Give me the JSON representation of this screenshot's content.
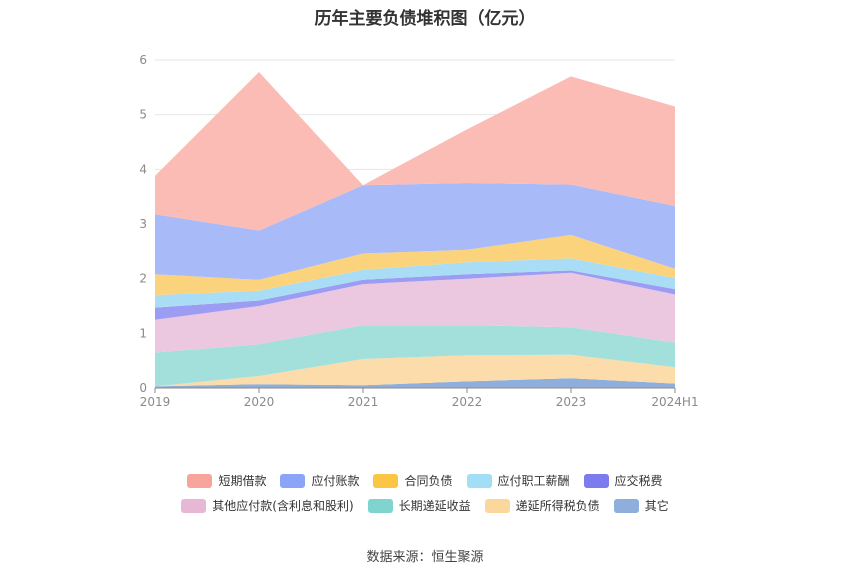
{
  "title": "历年主要负债堆积图（亿元）",
  "source": "数据来源：恒生聚源",
  "chart_data": {
    "type": "area",
    "stacked": true,
    "categories": [
      "2019",
      "2020",
      "2021",
      "2022",
      "2023",
      "2024H1"
    ],
    "ylim": [
      0,
      6
    ],
    "yticks": [
      0,
      1,
      2,
      3,
      4,
      5,
      6
    ],
    "grid": true,
    "legend_position": "bottom",
    "series": [
      {
        "name": "其它",
        "color": "#8eaedb",
        "values": [
          0.03,
          0.07,
          0.05,
          0.12,
          0.18,
          0.08
        ]
      },
      {
        "name": "递延所得税负债",
        "color": "#fbdcaa",
        "values": [
          0.0,
          0.15,
          0.48,
          0.48,
          0.43,
          0.3
        ]
      },
      {
        "name": "长期递延收益",
        "color": "#a3e0dc",
        "values": [
          0.62,
          0.58,
          0.62,
          0.55,
          0.5,
          0.45
        ]
      },
      {
        "name": "其他应付款(含利息和股利)",
        "color": "#ebc8df",
        "values": [
          0.6,
          0.7,
          0.75,
          0.85,
          1.0,
          0.88
        ]
      },
      {
        "name": "应交税费",
        "color": "#9c9cf3",
        "values": [
          0.22,
          0.1,
          0.08,
          0.08,
          0.04,
          0.1
        ]
      },
      {
        "name": "应付职工薪酬",
        "color": "#a9ddf5",
        "values": [
          0.23,
          0.18,
          0.18,
          0.22,
          0.22,
          0.2
        ]
      },
      {
        "name": "合同负债",
        "color": "#fcd37d",
        "values": [
          0.38,
          0.2,
          0.3,
          0.23,
          0.43,
          0.17
        ]
      },
      {
        "name": "应付账款",
        "color": "#a9baf8",
        "values": [
          1.1,
          0.9,
          1.25,
          1.22,
          0.92,
          1.15
        ]
      },
      {
        "name": "短期借款",
        "color": "#fbbcb6",
        "values": [
          0.7,
          2.9,
          0.0,
          0.98,
          1.98,
          1.82
        ]
      }
    ]
  },
  "legend": {
    "rows": [
      [
        {
          "label": "短期借款",
          "color": "#f7a59c"
        },
        {
          "label": "应付账款",
          "color": "#8aa4f7"
        },
        {
          "label": "合同负债",
          "color": "#fcc645"
        },
        {
          "label": "应付职工薪酬",
          "color": "#a3def7"
        },
        {
          "label": "应交税费",
          "color": "#7d7cee"
        }
      ],
      [
        {
          "label": "其他应付款(含利息和股利)",
          "color": "#e7b8d6"
        },
        {
          "label": "长期递延收益",
          "color": "#7fd4cf"
        },
        {
          "label": "递延所得税负债",
          "color": "#fcd79b"
        },
        {
          "label": "其它",
          "color": "#8eaedb"
        }
      ]
    ]
  }
}
